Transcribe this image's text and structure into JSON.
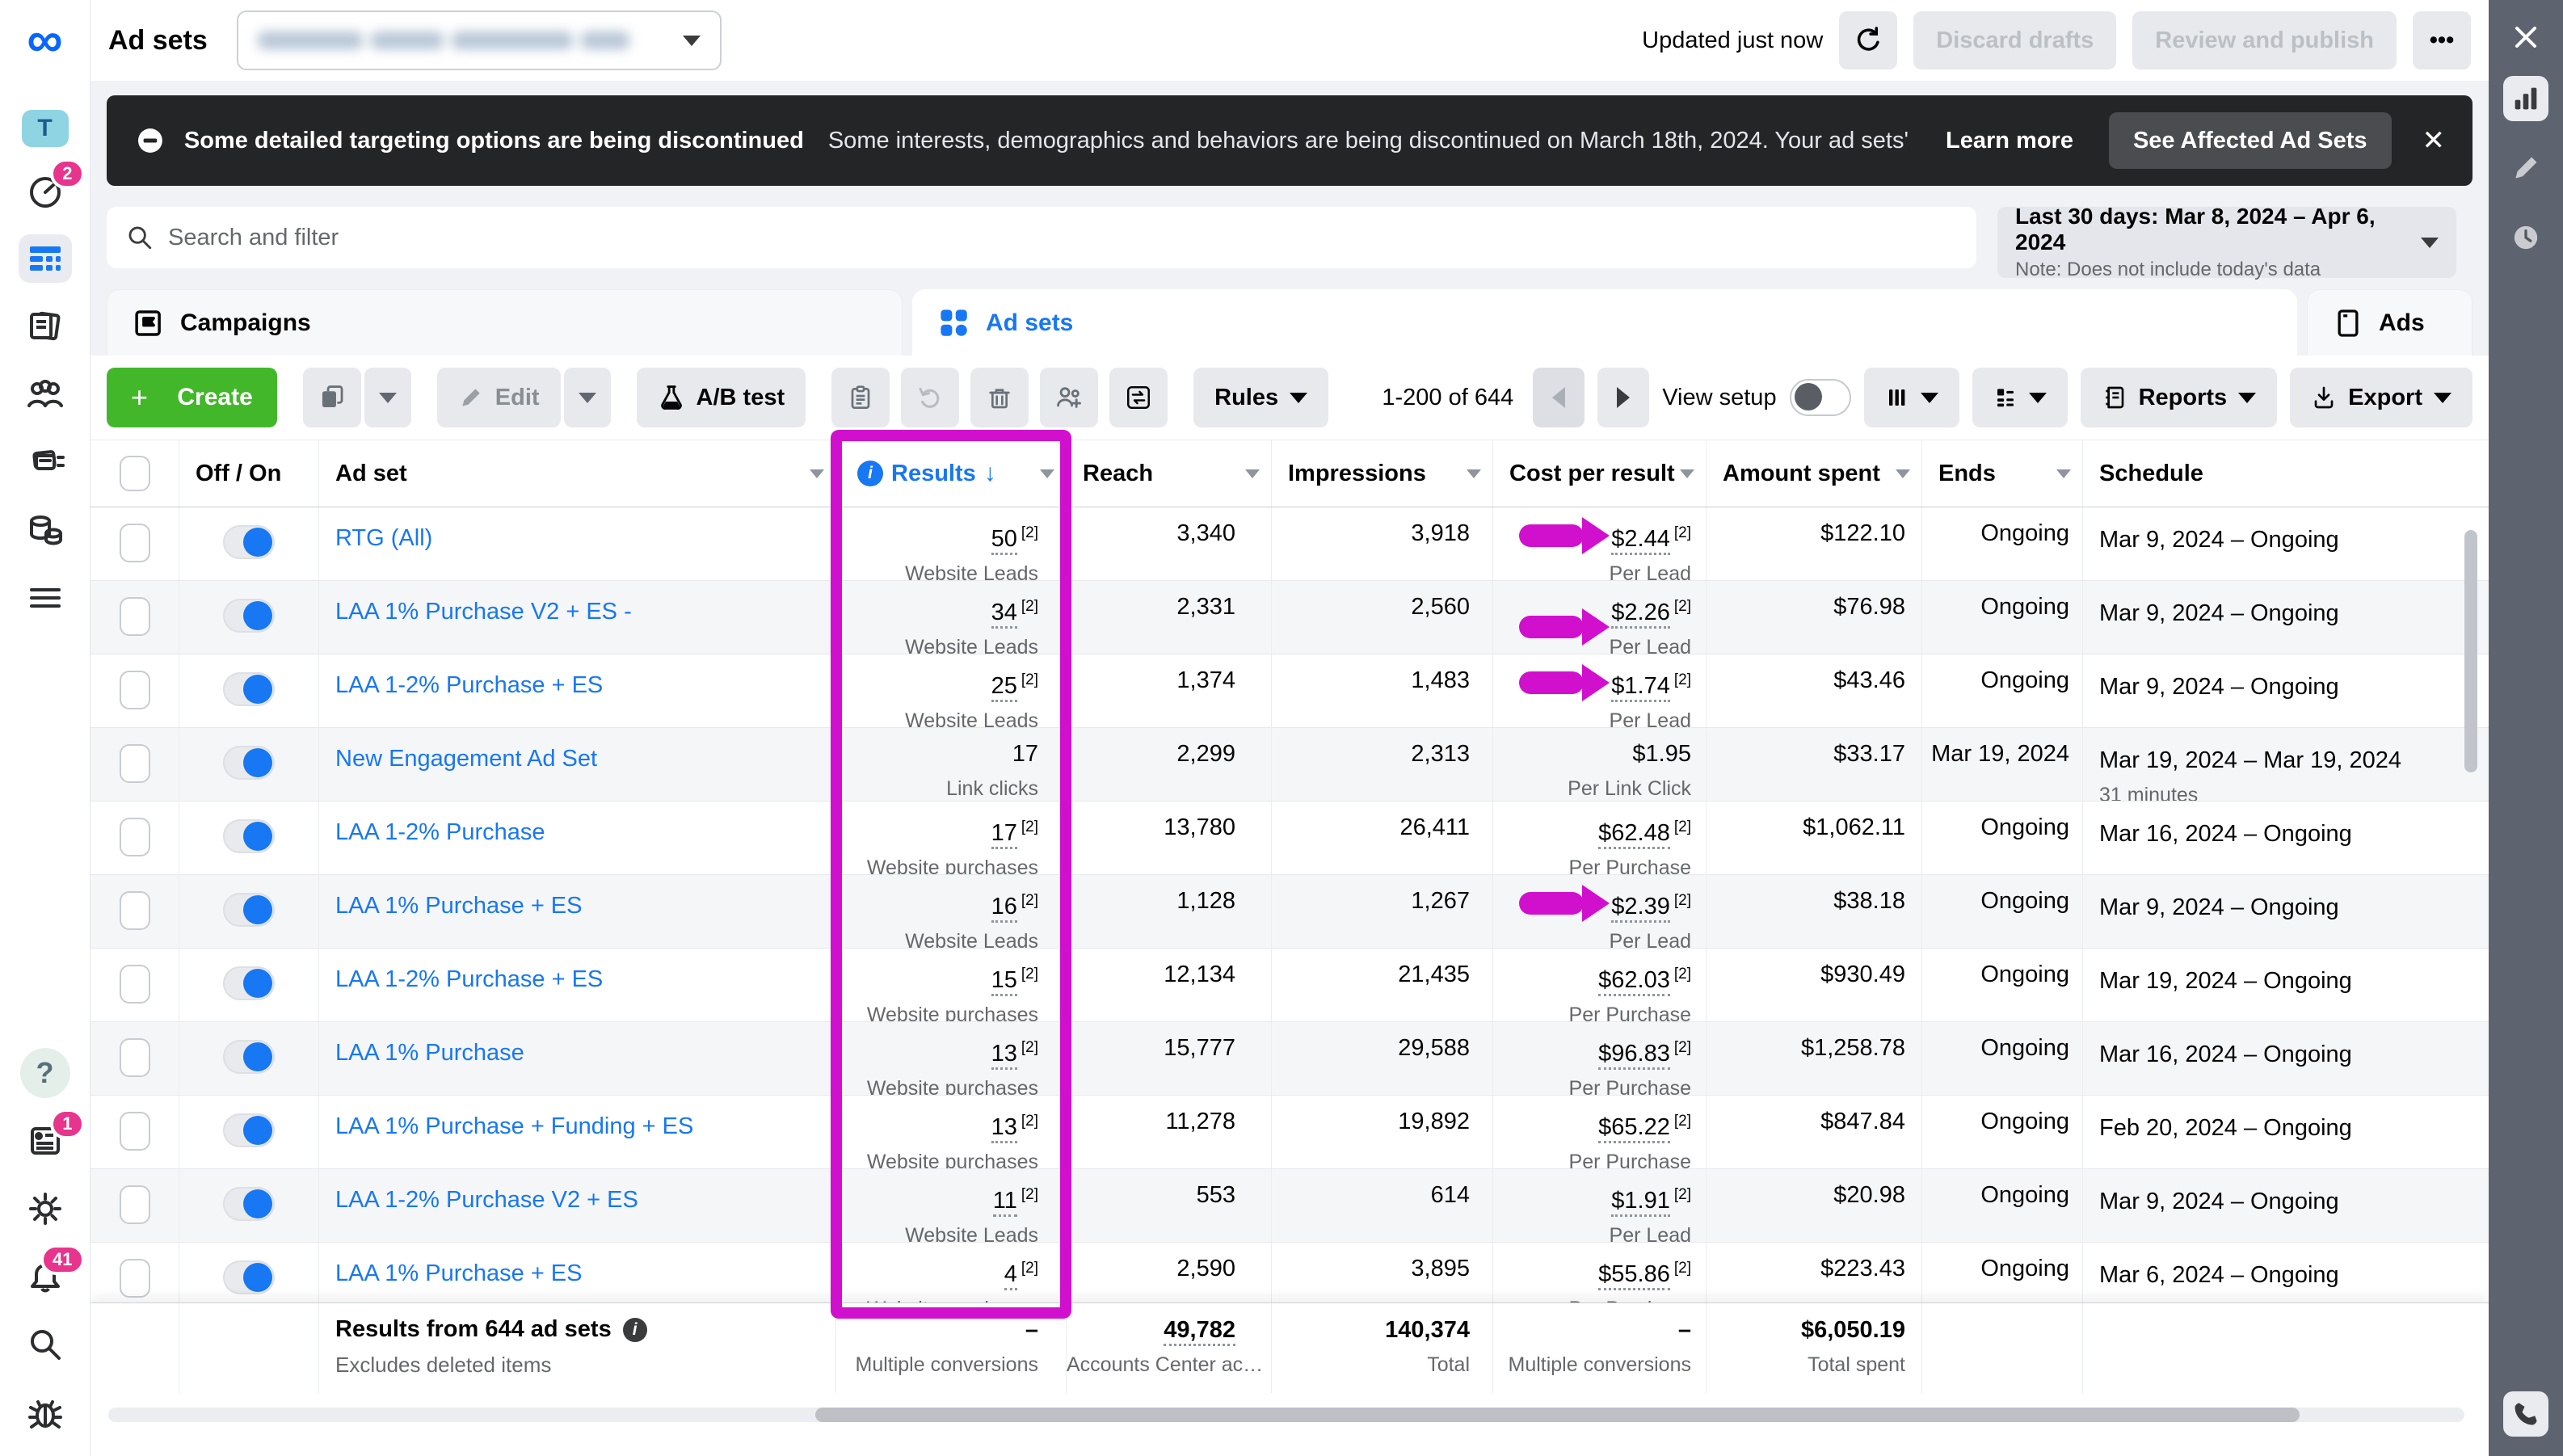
{
  "chrome": {
    "title": "Ad sets",
    "account_dropdown": {
      "redacted": true
    },
    "updated": "Updated just now",
    "discard": "Discard drafts",
    "review": "Review and publish",
    "more": "•••"
  },
  "left_rail": {
    "account_initial": "T",
    "badges": {
      "home": "2",
      "news": "1",
      "notifications": "41"
    },
    "icons": [
      "meta-logo",
      "account-avatar",
      "ads-manager-gauge",
      "campaigns-grid",
      "pages-docs",
      "audiences-people",
      "ads-reporting-cards",
      "billing-coins",
      "all-tools-menu",
      "help",
      "business-news",
      "settings-gear",
      "notifications-bell",
      "search",
      "bug-report"
    ]
  },
  "right_rail": {
    "icons": [
      "close",
      "chart-bars",
      "pencil",
      "clock",
      "phone"
    ]
  },
  "banner": {
    "title": "Some detailed targeting options are being discontinued",
    "body": "Some interests, demographics and behaviors are being discontinued on March 18th, 2024. Your ad sets' audienc…",
    "learn_more": "Learn more",
    "cta": "See Affected Ad Sets",
    "close": "✕"
  },
  "search": {
    "placeholder": "Search and filter"
  },
  "date_range": {
    "label": "Last 30 days: Mar 8, 2024 – Apr 6, 2024",
    "note": "Note: Does not include today's data"
  },
  "tabs": {
    "campaigns": "Campaigns",
    "adsets": "Ad sets",
    "ads": "Ads"
  },
  "toolbar": {
    "create": "Create",
    "edit": "Edit",
    "ab_test": "A/B test",
    "rules": "Rules",
    "pagination": "1-200 of 644",
    "view_setup": "View setup",
    "reports": "Reports",
    "export": "Export"
  },
  "table": {
    "headers": {
      "off_on": "Off / On",
      "ad_set": "Ad set",
      "results": "Results",
      "sort": "↓",
      "reach": "Reach",
      "impressions": "Impressions",
      "cost_per_result": "Cost per result",
      "amount_spent": "Amount spent",
      "ends": "Ends",
      "schedule": "Schedule"
    },
    "rows": [
      {
        "name": "RTG (All)",
        "results": "50",
        "results_sup": "[2]",
        "results_label": "Website Leads",
        "reach": "3,340",
        "impressions": "3,918",
        "cost": "$2.44",
        "cost_sup": "[2]",
        "cost_label": "Per Lead",
        "spent": "$122.10",
        "ends": "Ongoing",
        "schedule": "Mar 9, 2024 – Ongoing",
        "schedule_note": ""
      },
      {
        "name": "LAA 1% Purchase V2 + ES -",
        "results": "34",
        "results_sup": "[2]",
        "results_label": "Website Leads",
        "reach": "2,331",
        "impressions": "2,560",
        "cost": "$2.26",
        "cost_sup": "[2]",
        "cost_label": "Per Lead",
        "spent": "$76.98",
        "ends": "Ongoing",
        "schedule": "Mar 9, 2024 – Ongoing",
        "schedule_note": ""
      },
      {
        "name": "LAA 1-2% Purchase + ES",
        "results": "25",
        "results_sup": "[2]",
        "results_label": "Website Leads",
        "reach": "1,374",
        "impressions": "1,483",
        "cost": "$1.74",
        "cost_sup": "[2]",
        "cost_label": "Per Lead",
        "spent": "$43.46",
        "ends": "Ongoing",
        "schedule": "Mar 9, 2024 – Ongoing",
        "schedule_note": ""
      },
      {
        "name": "New Engagement Ad Set",
        "results": "17",
        "results_sup": "",
        "results_label": "Link clicks",
        "reach": "2,299",
        "impressions": "2,313",
        "cost": "$1.95",
        "cost_sup": "",
        "cost_label": "Per Link Click",
        "spent": "$33.17",
        "ends": "Mar 19, 2024",
        "schedule": "Mar 19, 2024 – Mar 19, 2024",
        "schedule_note": "31 minutes"
      },
      {
        "name": "LAA 1-2% Purchase",
        "results": "17",
        "results_sup": "[2]",
        "results_label": "Website purchases",
        "reach": "13,780",
        "impressions": "26,411",
        "cost": "$62.48",
        "cost_sup": "[2]",
        "cost_label": "Per Purchase",
        "spent": "$1,062.11",
        "ends": "Ongoing",
        "schedule": "Mar 16, 2024 – Ongoing",
        "schedule_note": ""
      },
      {
        "name": "LAA 1% Purchase + ES",
        "results": "16",
        "results_sup": "[2]",
        "results_label": "Website Leads",
        "reach": "1,128",
        "impressions": "1,267",
        "cost": "$2.39",
        "cost_sup": "[2]",
        "cost_label": "Per Lead",
        "spent": "$38.18",
        "ends": "Ongoing",
        "schedule": "Mar 9, 2024 – Ongoing",
        "schedule_note": ""
      },
      {
        "name": "LAA 1-2% Purchase + ES",
        "results": "15",
        "results_sup": "[2]",
        "results_label": "Website purchases",
        "reach": "12,134",
        "impressions": "21,435",
        "cost": "$62.03",
        "cost_sup": "[2]",
        "cost_label": "Per Purchase",
        "spent": "$930.49",
        "ends": "Ongoing",
        "schedule": "Mar 19, 2024 – Ongoing",
        "schedule_note": ""
      },
      {
        "name": "LAA 1% Purchase",
        "results": "13",
        "results_sup": "[2]",
        "results_label": "Website purchases",
        "reach": "15,777",
        "impressions": "29,588",
        "cost": "$96.83",
        "cost_sup": "[2]",
        "cost_label": "Per Purchase",
        "spent": "$1,258.78",
        "ends": "Ongoing",
        "schedule": "Mar 16, 2024 – Ongoing",
        "schedule_note": ""
      },
      {
        "name": "LAA 1% Purchase + Funding + ES",
        "results": "13",
        "results_sup": "[2]",
        "results_label": "Website purchases",
        "reach": "11,278",
        "impressions": "19,892",
        "cost": "$65.22",
        "cost_sup": "[2]",
        "cost_label": "Per Purchase",
        "spent": "$847.84",
        "ends": "Ongoing",
        "schedule": "Feb 20, 2024 – Ongoing",
        "schedule_note": ""
      },
      {
        "name": "LAA 1-2% Purchase V2 + ES",
        "results": "11",
        "results_sup": "[2]",
        "results_label": "Website Leads",
        "reach": "553",
        "impressions": "614",
        "cost": "$1.91",
        "cost_sup": "[2]",
        "cost_label": "Per Lead",
        "spent": "$20.98",
        "ends": "Ongoing",
        "schedule": "Mar 9, 2024 – Ongoing",
        "schedule_note": ""
      },
      {
        "name": "LAA 1% Purchase + ES",
        "results": "4",
        "results_sup": "[2]",
        "results_label": "Website purchases",
        "reach": "2,590",
        "impressions": "3,895",
        "cost": "$55.86",
        "cost_sup": "[2]",
        "cost_label": "Per Purchase",
        "spent": "$223.43",
        "ends": "Ongoing",
        "schedule": "Mar 6, 2024 – Ongoing",
        "schedule_note": ""
      }
    ]
  },
  "footer": {
    "summary": "Results from 644 ad sets",
    "summary_note": "Excludes deleted items",
    "results_value": "–",
    "results_label": "Multiple conversions",
    "reach_value": "49,782",
    "reach_label": "Accounts Center ac…",
    "impressions_value": "140,374",
    "impressions_label": "Total",
    "cost_value": "–",
    "cost_label": "Multiple conversions",
    "spent_value": "$6,050.19",
    "spent_label": "Total spent"
  },
  "annotations": {
    "color": "#d110ce",
    "box_column": "Results",
    "arrows": [
      {
        "row": 0,
        "offset": "inline"
      },
      {
        "row": 1,
        "offset": "below"
      },
      {
        "row": 2,
        "offset": "inline"
      },
      {
        "row": 5,
        "offset": "inline"
      }
    ]
  },
  "colors": {
    "accent_blue": "#1877f2",
    "green": "#42b72a",
    "banner_bg": "#242526",
    "magenta": "#d110ce",
    "rail_dark": "#5d6470"
  }
}
